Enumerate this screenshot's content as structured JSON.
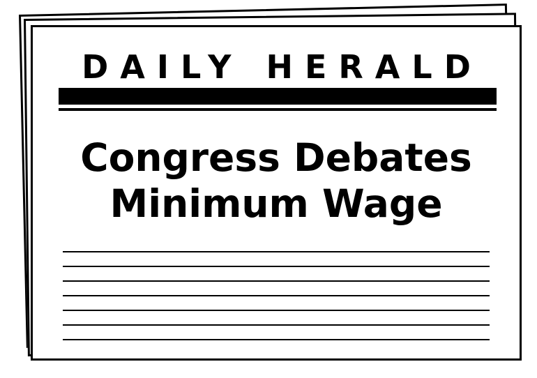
{
  "newspaper": {
    "masthead": "DAILY HERALD",
    "headline_line1": "Congress Debates",
    "headline_line2": "Minimum Wage",
    "body_line_count": 7
  }
}
